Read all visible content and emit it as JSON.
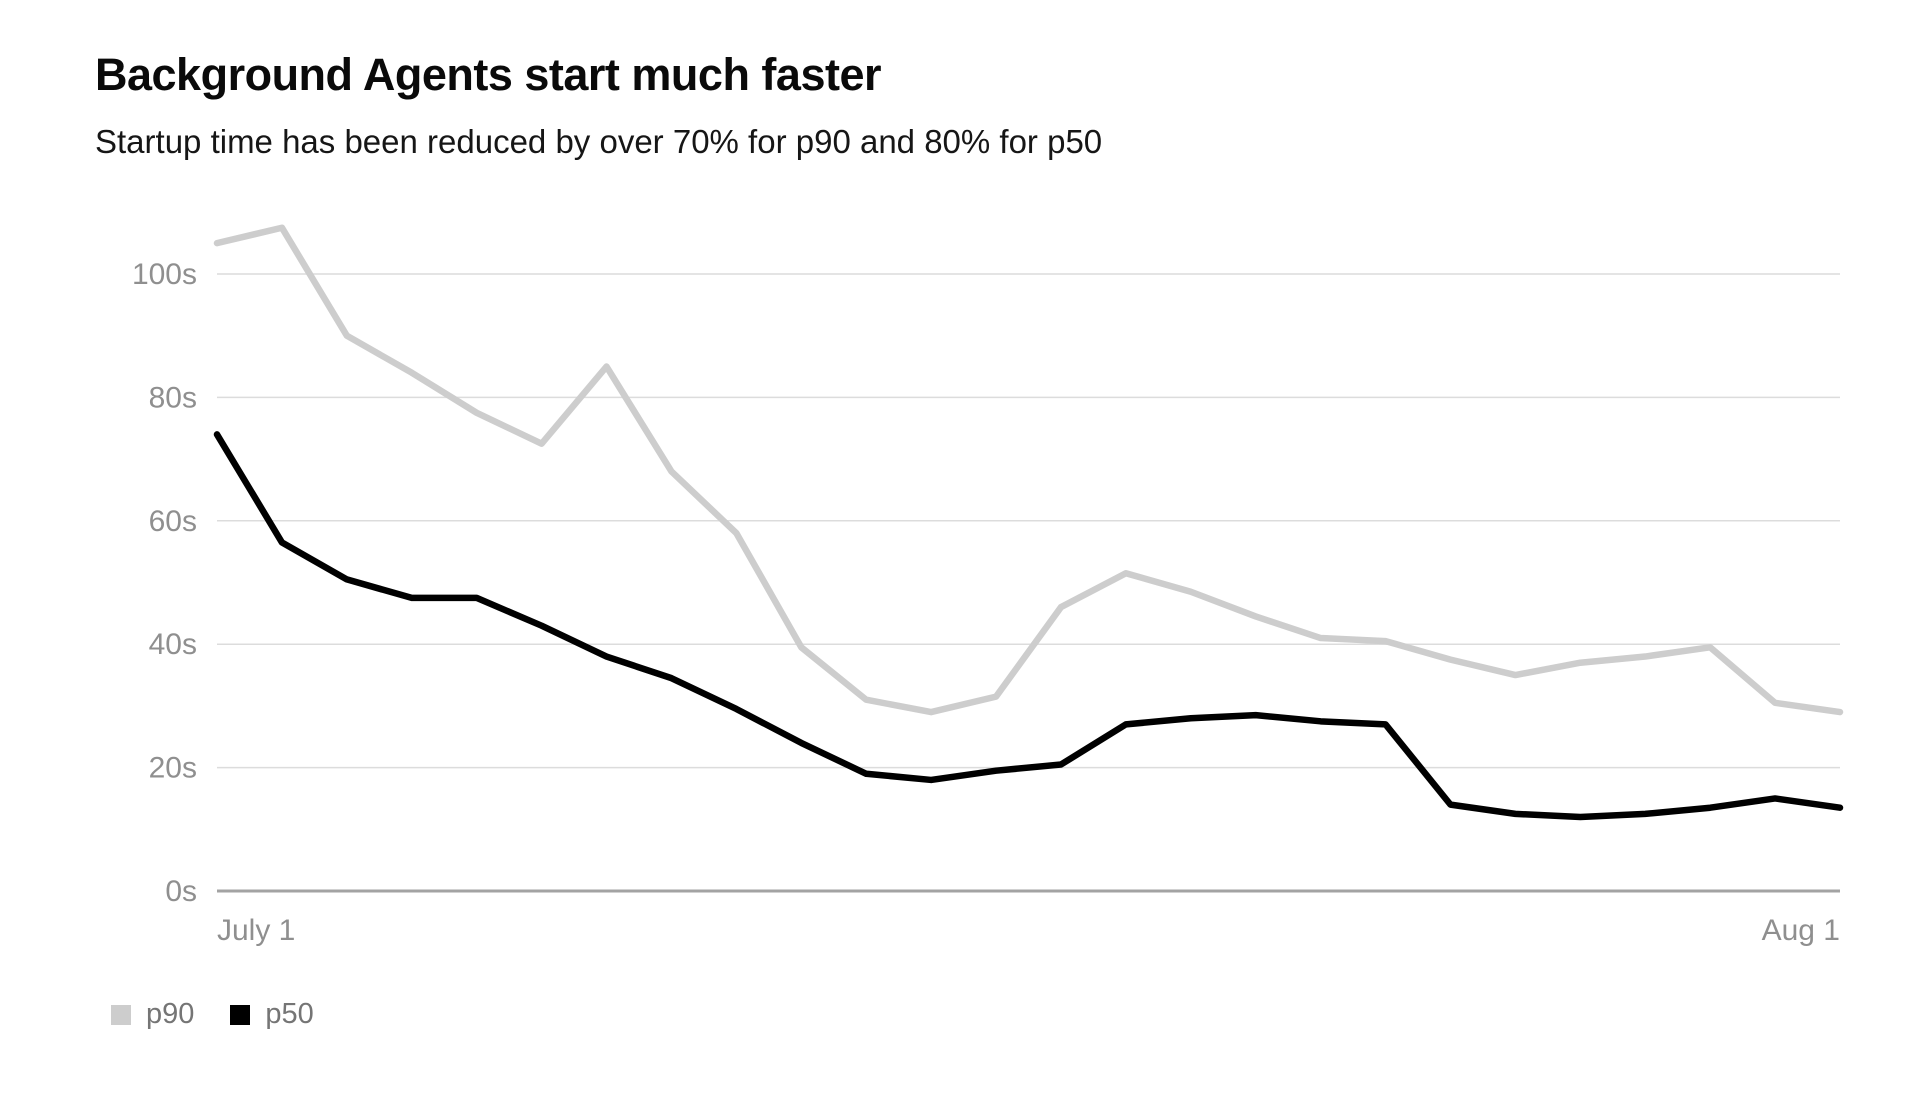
{
  "page": {
    "background": "#ffffff"
  },
  "legend": {
    "items": [
      {
        "label": "p90",
        "color": "#cdcdcd"
      },
      {
        "label": "p50",
        "color": "#000000"
      }
    ]
  },
  "chart_data": {
    "type": "line",
    "title": "Background Agents start much faster",
    "subtitle": "Startup time has been reduced by over 70% for p90 and 80% for p50",
    "xlabel": "",
    "ylabel": "",
    "unit": "seconds",
    "ylim": [
      0,
      108
    ],
    "grid": "horizontal",
    "legend_position": "bottom-left",
    "y_ticks": [
      {
        "value": 0,
        "label": "0s"
      },
      {
        "value": 20,
        "label": "20s"
      },
      {
        "value": 40,
        "label": "40s"
      },
      {
        "value": 60,
        "label": "60s"
      },
      {
        "value": 80,
        "label": "80s"
      },
      {
        "value": 100,
        "label": "100s"
      }
    ],
    "x_tick_labels": [
      "July 1",
      "Aug 1"
    ],
    "x_tick_positions": [
      0,
      25
    ],
    "num_points": 26,
    "series": [
      {
        "name": "p90",
        "color": "#cdcdcd",
        "values": [
          105,
          107.5,
          90,
          84,
          77.5,
          72.5,
          85,
          68,
          58,
          39.5,
          31,
          29,
          31.5,
          46,
          51.5,
          48.5,
          44.5,
          41,
          40.5,
          37.5,
          35,
          37,
          38,
          39.5,
          30.5,
          29
        ]
      },
      {
        "name": "p50",
        "color": "#000000",
        "values": [
          74,
          56.5,
          50.5,
          47.5,
          47.5,
          43,
          38,
          34.5,
          29.5,
          24,
          19,
          18,
          19.5,
          20.5,
          27,
          28,
          28.5,
          27.5,
          27,
          14,
          12.5,
          12,
          12.5,
          13.5,
          15,
          13.5
        ]
      }
    ],
    "axis_colors": {
      "gridline": "#dcdcdc",
      "baseline": "#a3a3a3",
      "tick_text": "#8f8f8f"
    }
  }
}
